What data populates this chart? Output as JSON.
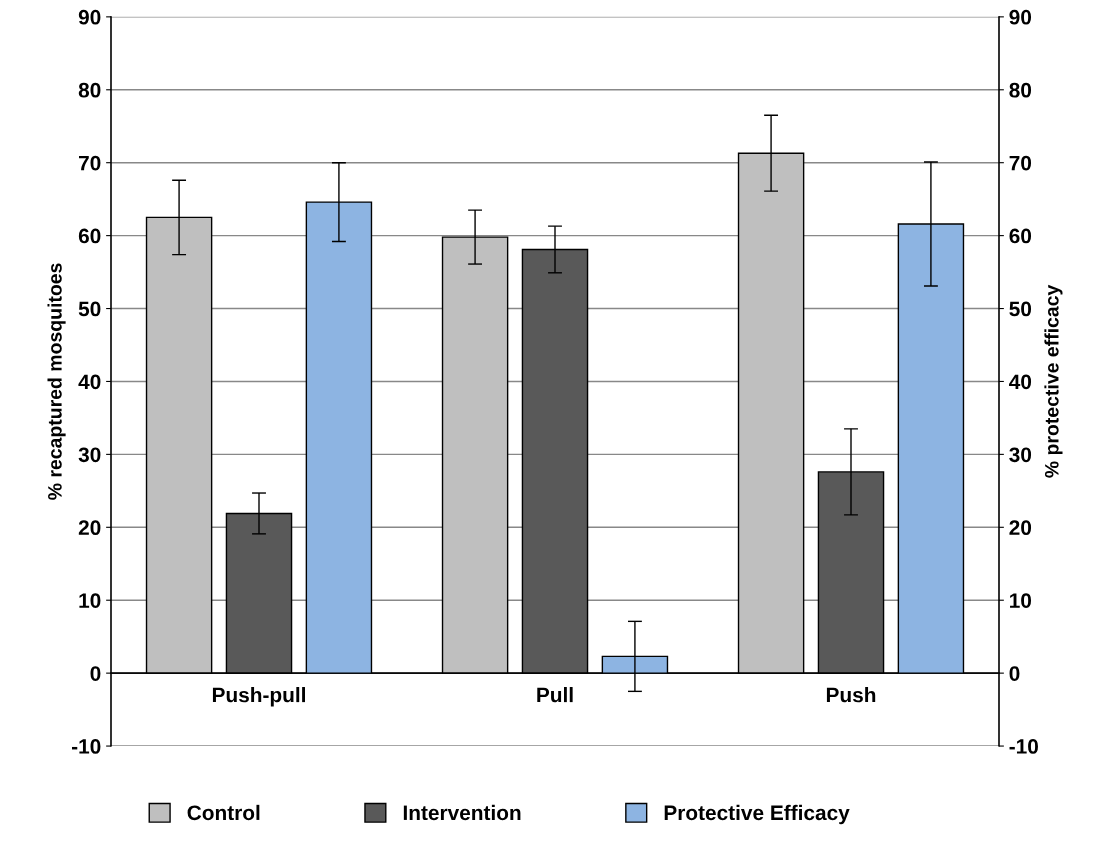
{
  "chart_data": {
    "type": "bar",
    "categories": [
      "Push-pull",
      "Pull",
      "Push"
    ],
    "ylabel": "% recaptured mosquitoes",
    "y2label": "% protective efficacy",
    "ylim": [
      -10,
      90
    ],
    "yticks": [
      -10,
      0,
      10,
      20,
      30,
      40,
      50,
      60,
      70,
      80,
      90
    ],
    "y2lim": [
      -10,
      90
    ],
    "y2ticks": [
      -10,
      0,
      10,
      20,
      30,
      40,
      50,
      60,
      70,
      80,
      90
    ],
    "grid": "y",
    "legend": "bottom",
    "series": [
      {
        "name": "Control",
        "color": "#bfbfbf",
        "values": [
          62.5,
          59.8,
          71.3
        ],
        "errors": [
          5.1,
          3.7,
          5.2
        ]
      },
      {
        "name": "Intervention",
        "color": "#595959",
        "values": [
          21.9,
          58.1,
          27.6
        ],
        "errors": [
          2.8,
          3.2,
          5.9
        ]
      },
      {
        "name": "Protective Efficacy",
        "color": "#8db4e2",
        "axis": "y2",
        "values": [
          64.6,
          2.3,
          61.6
        ],
        "errors": [
          5.4,
          4.8,
          8.5
        ]
      }
    ]
  }
}
